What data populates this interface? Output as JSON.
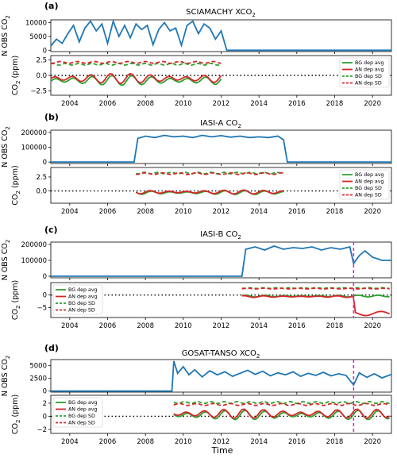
{
  "figure": {
    "xlabel": "Time"
  },
  "chart_data": [
    {
      "panel": "(a)",
      "title_main": "SCIAMACHY XCO",
      "title_sub": "2",
      "top": {
        "type": "line",
        "ylabel_main": "N OBS CO",
        "ylabel_sub": "2",
        "yticks": [
          0,
          5000,
          10000
        ],
        "ylim": [
          -500,
          11000
        ],
        "series": [
          {
            "name": "N OBS",
            "color": "#1f77b4",
            "x": [
              2003.0,
              2003.3,
              2003.6,
              2003.9,
              2004.2,
              2004.5,
              2004.8,
              2005.1,
              2005.4,
              2005.7,
              2006.0,
              2006.3,
              2006.6,
              2006.9,
              2007.2,
              2007.5,
              2007.8,
              2008.1,
              2008.4,
              2008.7,
              2009.0,
              2009.3,
              2009.6,
              2009.9,
              2010.2,
              2010.5,
              2010.8,
              2011.1,
              2011.4,
              2011.7,
              2012.0,
              2012.3,
              2016,
              2021
            ],
            "y": [
              1500,
              4000,
              2500,
              6000,
              9000,
              3000,
              8000,
              10500,
              7000,
              9500,
              2500,
              10500,
              5000,
              9000,
              4500,
              9500,
              7500,
              9000,
              2000,
              7500,
              10000,
              7000,
              8000,
              1800,
              9000,
              10500,
              6000,
              9500,
              8000,
              4000,
              7000,
              0,
              0,
              0
            ]
          }
        ]
      },
      "bottom": {
        "type": "line",
        "ylabel_main": "CO",
        "ylabel_sub": "2",
        "ylabel_unit": " (ppm)",
        "yticks": [
          -2.5,
          0.0,
          2.5
        ],
        "ylim": [
          -3.2,
          3.2
        ],
        "zero_line": true,
        "legend": {
          "placement": "right",
          "entries": [
            "BG dep avg",
            "AN dep avg",
            "BG dep SD",
            "AN dep SD"
          ]
        },
        "x_range": [
          2003,
          2012.1
        ],
        "bg_sd_level": 1.8,
        "an_sd_level": 2.1,
        "bg_avg_mean": -0.8,
        "an_avg_mean": -0.5,
        "amplitude": 0.9
      }
    },
    {
      "panel": "(b)",
      "title_main": "IASI-A CO",
      "title_sub": "2",
      "top": {
        "type": "line",
        "ylabel_main": "N OBS CO",
        "ylabel_sub": "2",
        "yticks": [
          0,
          100000,
          200000
        ],
        "ylim": [
          -10000,
          215000
        ],
        "series": [
          {
            "name": "N OBS",
            "color": "#1f77b4",
            "x": [
              2003,
              2007.4,
              2007.6,
              2008.0,
              2008.5,
              2009.0,
              2009.5,
              2010.0,
              2010.5,
              2011.0,
              2011.5,
              2012.0,
              2012.5,
              2013.0,
              2013.5,
              2014.0,
              2014.5,
              2015.0,
              2015.3,
              2015.5,
              2021
            ],
            "y": [
              0,
              0,
              160000,
              175000,
              165000,
              180000,
              170000,
              175000,
              165000,
              180000,
              170000,
              178000,
              168000,
              175000,
              165000,
              170000,
              165000,
              175000,
              150000,
              0,
              0
            ]
          }
        ]
      },
      "bottom": {
        "type": "line",
        "ylabel_main": "CO",
        "ylabel_sub": "2",
        "ylabel_unit": " (ppm)",
        "yticks": [
          0.0,
          2.5
        ],
        "ylim": [
          -2.2,
          4.2
        ],
        "zero_line": true,
        "legend": {
          "placement": "right",
          "entries": [
            "BG dep avg",
            "AN dep avg",
            "BG dep SD",
            "AN dep SD"
          ]
        },
        "x_range": [
          2007.5,
          2015.4
        ],
        "bg_sd_level": 3.2,
        "an_sd_level": 3.1,
        "bg_avg_mean": -0.3,
        "an_avg_mean": -0.2,
        "amplitude": 0.4
      }
    },
    {
      "panel": "(c)",
      "title_main": "IASI-B CO",
      "title_sub": "2",
      "top": {
        "type": "line",
        "ylabel_main": "N OBS CO",
        "ylabel_sub": "2",
        "yticks": [
          0,
          100000,
          200000
        ],
        "ylim": [
          -10000,
          215000
        ],
        "vline": 2019.0,
        "series": [
          {
            "name": "N OBS",
            "color": "#1f77b4",
            "x": [
              2003,
              2013.1,
              2013.3,
              2013.8,
              2014.3,
              2014.8,
              2015.3,
              2015.8,
              2016.3,
              2016.8,
              2017.3,
              2017.8,
              2018.3,
              2018.8,
              2019.0,
              2019.3,
              2019.6,
              2020.0,
              2020.5,
              2021
            ],
            "y": [
              0,
              0,
              170000,
              185000,
              165000,
              190000,
              170000,
              180000,
              175000,
              185000,
              165000,
              180000,
              170000,
              185000,
              80000,
              130000,
              160000,
              120000,
              100000,
              100000
            ]
          }
        ]
      },
      "bottom": {
        "type": "line",
        "ylabel_main": "CO",
        "ylabel_sub": "2",
        "ylabel_unit": " (ppm)",
        "yticks": [
          -5,
          0
        ],
        "ylim": [
          -9,
          5
        ],
        "zero_line": true,
        "vline": 2019.0,
        "legend": {
          "placement": "left",
          "entries": [
            "BG dep avg",
            "AN dep avg",
            "BG dep SD",
            "AN dep SD"
          ]
        },
        "x_range": [
          2013.1,
          2021
        ],
        "bg_sd_level": 2.8,
        "an_sd_level": 2.6,
        "bg_avg_mean": -0.4,
        "an_avg_mean": -0.6,
        "amplitude": 0.4,
        "an_drop_after": 2019.0,
        "an_drop_to": -7.5
      }
    },
    {
      "panel": "(d)",
      "title_main": "GOSAT-TANSO XCO",
      "title_sub": "2",
      "top": {
        "type": "line",
        "ylabel_main": "N OBS CO",
        "ylabel_sub": "2",
        "yticks": [
          0,
          2500,
          5000
        ],
        "ylim": [
          -200,
          6200
        ],
        "vline": 2019.0,
        "series": [
          {
            "name": "N OBS",
            "color": "#1f77b4",
            "x": [
              2003,
              2009.4,
              2009.5,
              2009.7,
              2010.0,
              2010.3,
              2010.6,
              2011.0,
              2011.4,
              2011.8,
              2012.2,
              2012.6,
              2013.0,
              2013.4,
              2013.8,
              2014.2,
              2014.6,
              2015.0,
              2015.4,
              2015.8,
              2016.2,
              2016.6,
              2017.0,
              2017.4,
              2017.8,
              2018.2,
              2018.6,
              2019.0,
              2019.3,
              2019.7,
              2020.1,
              2020.5,
              2021
            ],
            "y": [
              0,
              0,
              5900,
              3500,
              4800,
              3200,
              4200,
              2800,
              4000,
              3200,
              3800,
              2900,
              3500,
              4100,
              3300,
              3900,
              3000,
              3600,
              3200,
              3800,
              2900,
              3500,
              3100,
              3700,
              3000,
              3400,
              3100,
              1200,
              3600,
              2700,
              3400,
              2600,
              3300
            ]
          }
        ]
      },
      "bottom": {
        "type": "line",
        "ylabel_main": "CO",
        "ylabel_sub": "2",
        "ylabel_unit": " (ppm)",
        "yticks": [
          -2,
          0,
          2
        ],
        "ylim": [
          -2.6,
          3.2
        ],
        "zero_line": true,
        "vline": 2019.0,
        "legend": {
          "placement": "left",
          "entries": [
            "BG dep avg",
            "AN dep avg",
            "BG dep SD",
            "AN dep SD"
          ]
        },
        "x_range": [
          2009.5,
          2021
        ],
        "bg_sd_level": 2.1,
        "an_sd_level": 1.8,
        "bg_avg_mean": 0.2,
        "an_avg_mean": 0.4,
        "amplitude": 0.8
      }
    }
  ],
  "x_axis": {
    "xlim": [
      2003,
      2021
    ],
    "ticks": [
      2004,
      2006,
      2008,
      2010,
      2012,
      2014,
      2016,
      2018,
      2020
    ]
  },
  "colors": {
    "blue": "#1f77b4",
    "green": "#2ca02c",
    "red": "#d62728",
    "magenta": "#cc33cc",
    "black": "#000000"
  }
}
